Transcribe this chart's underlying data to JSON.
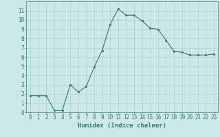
{
  "x": [
    0,
    1,
    2,
    3,
    4,
    5,
    6,
    7,
    8,
    9,
    10,
    11,
    12,
    13,
    14,
    15,
    16,
    17,
    18,
    19,
    20,
    21,
    22,
    23
  ],
  "y": [
    1.8,
    1.8,
    1.8,
    0.2,
    0.2,
    3.0,
    2.2,
    2.8,
    4.9,
    6.7,
    9.5,
    11.2,
    10.5,
    10.5,
    9.9,
    9.1,
    9.0,
    7.8,
    6.6,
    6.5,
    6.2,
    6.2,
    6.2,
    6.3
  ],
  "xlabel": "Humidex (Indice chaleur)",
  "ylim": [
    0,
    12
  ],
  "xlim": [
    -0.5,
    23.5
  ],
  "yticks": [
    0,
    1,
    2,
    3,
    4,
    5,
    6,
    7,
    8,
    9,
    10,
    11
  ],
  "xticks": [
    0,
    1,
    2,
    3,
    4,
    5,
    6,
    7,
    8,
    9,
    10,
    11,
    12,
    13,
    14,
    15,
    16,
    17,
    18,
    19,
    20,
    21,
    22,
    23
  ],
  "line_color": "#2d7a6e",
  "marker_color": "#2d7a6e",
  "bg_color": "#cce8e8",
  "grid_color": "#aacece",
  "axis_color": "#2d7a6e",
  "tick_label_color": "#2d7a6e",
  "xlabel_color": "#2d7a6e",
  "xlabel_fontsize": 6.5,
  "tick_fontsize": 5.5,
  "linewidth": 0.8,
  "markersize": 2.0
}
